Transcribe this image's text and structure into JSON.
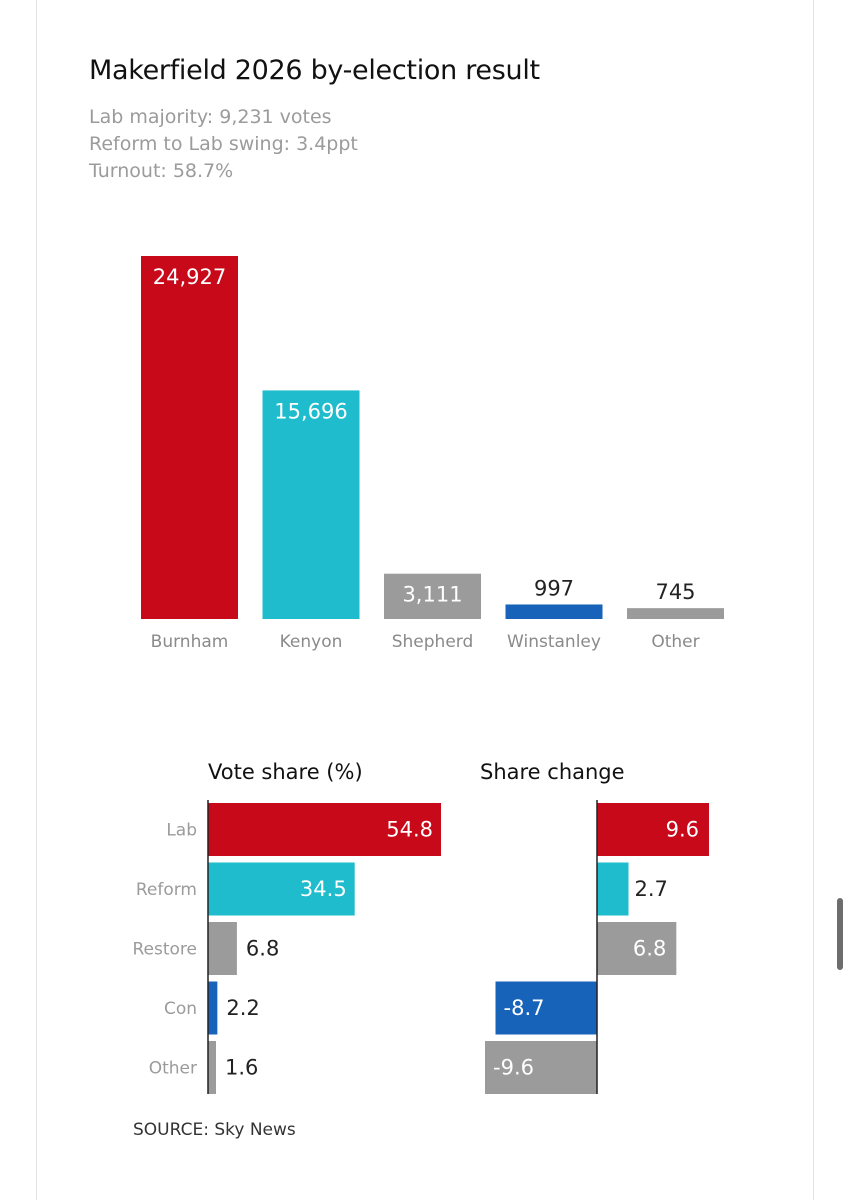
{
  "header": {
    "title": "Makerfield 2026 by-election result",
    "majority": "Lab majority: 9,231 votes",
    "swing": "Reform to Lab swing: 3.4ppt",
    "turnout": "Turnout: 58.7%"
  },
  "source": "SOURCE: Sky News",
  "colors": {
    "lab": "#c8091a",
    "reform": "#1ebccd",
    "other": "#9b9b9b",
    "con": "#1763b9"
  },
  "chart_data": [
    {
      "type": "bar",
      "title": "",
      "categories": [
        "Burnham",
        "Kenyon",
        "Shepherd",
        "Winstanley",
        "Other"
      ],
      "values": [
        24927,
        15696,
        3111,
        997,
        745
      ],
      "value_labels": [
        "24,927",
        "15,696",
        "3,111",
        "997",
        "745"
      ],
      "colors": [
        "#c8091a",
        "#1ebccd",
        "#9b9b9b",
        "#1763b9",
        "#9b9b9b"
      ],
      "ylim": [
        0,
        24927
      ],
      "grid": false
    },
    {
      "type": "bar",
      "orientation": "horizontal",
      "title": "Vote share (%)",
      "categories": [
        "Lab",
        "Reform",
        "Restore",
        "Con",
        "Other"
      ],
      "values": [
        54.8,
        34.5,
        6.8,
        2.2,
        1.6
      ],
      "value_labels": [
        "54.8",
        "34.5",
        "6.8",
        "2.2",
        "1.6"
      ],
      "colors": [
        "#c8091a",
        "#1ebccd",
        "#9b9b9b",
        "#1763b9",
        "#9b9b9b"
      ],
      "xlim": [
        0,
        54.8
      ],
      "grid": false
    },
    {
      "type": "bar",
      "orientation": "horizontal",
      "title": "Share change",
      "categories": [
        "Lab",
        "Reform",
        "Restore",
        "Con",
        "Other"
      ],
      "values": [
        9.6,
        2.7,
        6.8,
        -8.7,
        -9.6
      ],
      "value_labels": [
        "9.6",
        "2.7",
        "6.8",
        "-8.7",
        "-9.6"
      ],
      "colors": [
        "#c8091a",
        "#1ebccd",
        "#9b9b9b",
        "#1763b9",
        "#9b9b9b"
      ],
      "xlim": [
        -9.6,
        9.6
      ],
      "grid": false
    }
  ]
}
